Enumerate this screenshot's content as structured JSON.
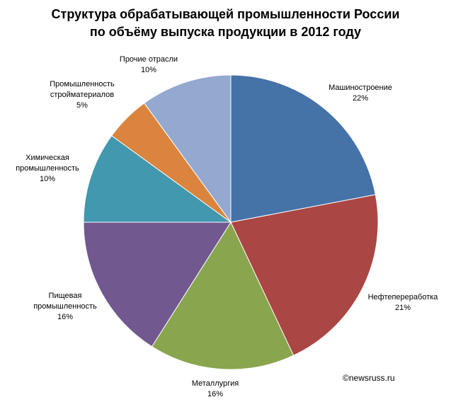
{
  "chart_data": {
    "type": "pie",
    "title_lines": [
      "Структура обрабатывающей промышленности России",
      "по объёму выпуска продукции в 2012 году"
    ],
    "categories": [
      "Машиностроение",
      "Нефтепереработка",
      "Металлургия",
      "Пищевая промышленность",
      "Химическая промышленность",
      "Промышленность стройматериалов",
      "Прочие отрасли"
    ],
    "values": [
      22,
      21,
      16,
      16,
      10,
      5,
      10
    ],
    "slices": [
      {
        "label_lines": [
          "Машиностроение"
        ],
        "value": 22,
        "value_label": "22%",
        "color": "#4572A7"
      },
      {
        "label_lines": [
          "Нефтепереработка"
        ],
        "value": 21,
        "value_label": "21%",
        "color": "#AA4643"
      },
      {
        "label_lines": [
          "Металлургия"
        ],
        "value": 16,
        "value_label": "16%",
        "color": "#89A54E"
      },
      {
        "label_lines": [
          "Пищевая",
          "промышленность"
        ],
        "value": 16,
        "value_label": "16%",
        "color": "#71588F"
      },
      {
        "label_lines": [
          "Химическая",
          "промышленность"
        ],
        "value": 10,
        "value_label": "10%",
        "color": "#4198AF"
      },
      {
        "label_lines": [
          "Промышленность",
          "стройматериалов"
        ],
        "value": 5,
        "value_label": "5%",
        "color": "#DB843D"
      },
      {
        "label_lines": [
          "Прочие отрасли"
        ],
        "value": 10,
        "value_label": "10%",
        "color": "#93A9CF"
      }
    ],
    "start_angle_deg": 0,
    "direction": "clockwise",
    "legend": "none"
  },
  "source": "©newsruss.ru"
}
